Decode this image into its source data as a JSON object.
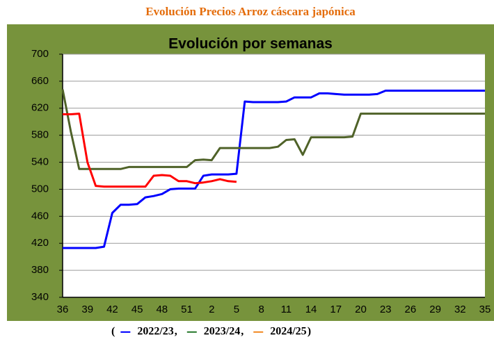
{
  "chart_data": {
    "type": "line",
    "title": "Evolución Precios Arroz cáscara japónica",
    "subtitle": "Evolución por semanas",
    "categories": [
      "36",
      null,
      null,
      "39",
      null,
      null,
      "42",
      null,
      null,
      "45",
      null,
      null,
      "48",
      null,
      null,
      "51",
      null,
      null,
      "2",
      null,
      null,
      "5",
      null,
      null,
      "8",
      null,
      null,
      "11",
      null,
      null,
      "14",
      null,
      null,
      "17",
      null,
      null,
      "20",
      null,
      null,
      "23",
      null,
      null,
      "26",
      null,
      null,
      "29",
      null,
      null,
      "32",
      null,
      null,
      "35"
    ],
    "series": [
      {
        "name": "2022/23",
        "color": "#0000ff",
        "legend_color": "#0000ff",
        "values": [
          413,
          413,
          413,
          413,
          413,
          415,
          465,
          477,
          477,
          478,
          488,
          490,
          493,
          500,
          501,
          501,
          501,
          520,
          522,
          522,
          522,
          523,
          630,
          629,
          629,
          629,
          629,
          630,
          636,
          636,
          636,
          642,
          642,
          641,
          640,
          640,
          640,
          640,
          641,
          646,
          646,
          646,
          646,
          646,
          646,
          646,
          646,
          646,
          646,
          646,
          646,
          646
        ]
      },
      {
        "name": "2023/24",
        "color": "#4f6228",
        "legend_color": "#2e7d32",
        "values": [
          648,
          585,
          530,
          530,
          530,
          530,
          530,
          530,
          533,
          533,
          533,
          533,
          533,
          533,
          533,
          533,
          543,
          544,
          543,
          561,
          561,
          561,
          561,
          561,
          561,
          561,
          563,
          573,
          574,
          551,
          577,
          577,
          577,
          577,
          577,
          578,
          612,
          612,
          612,
          612,
          612,
          612,
          612,
          612,
          612,
          612,
          612,
          612,
          612,
          612,
          612,
          612
        ]
      },
      {
        "name": "2024/25",
        "color": "#ff0000",
        "legend_color": "#f28c28",
        "values": [
          611,
          611,
          612,
          540,
          505,
          504,
          504,
          504,
          504,
          504,
          504,
          520,
          521,
          520,
          512,
          512,
          509,
          510,
          512,
          515,
          512,
          511,
          null,
          null,
          null,
          null,
          null,
          null,
          null,
          null,
          null,
          null,
          null,
          null,
          null,
          null,
          null,
          null,
          null,
          null,
          null,
          null,
          null,
          null,
          null,
          null,
          null,
          null,
          null,
          null,
          null,
          null
        ]
      }
    ],
    "ylim": [
      340,
      700
    ],
    "yticks": [
      340,
      380,
      420,
      460,
      500,
      540,
      580,
      620,
      660,
      700
    ],
    "grid": true,
    "legend_prefix": "(",
    "legend_separator": ",",
    "legend_suffix": ")"
  }
}
